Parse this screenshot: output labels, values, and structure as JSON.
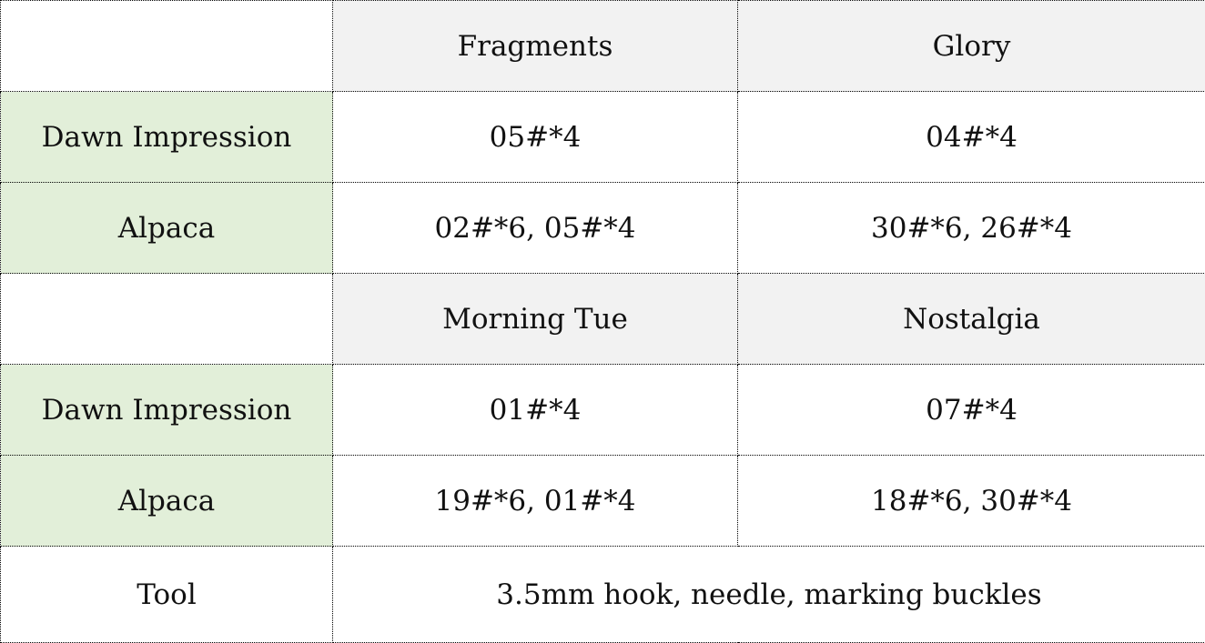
{
  "colors": {
    "header_bg": "#f2f2f2",
    "row_label_bg": "#e2efd9",
    "border": "#000000"
  },
  "blocks": [
    {
      "headers": [
        "Fragments",
        "Glory"
      ],
      "rows": [
        {
          "label": "Dawn Impression",
          "values": [
            "05#*4",
            "04#*4"
          ]
        },
        {
          "label": "Alpaca",
          "values": [
            "02#*6, 05#*4",
            "30#*6, 26#*4"
          ]
        }
      ]
    },
    {
      "headers": [
        "Morning Tue",
        "Nostalgia"
      ],
      "rows": [
        {
          "label": "Dawn Impression",
          "values": [
            "01#*4",
            "07#*4"
          ]
        },
        {
          "label": "Alpaca",
          "values": [
            "19#*6, 01#*4",
            "18#*6, 30#*4"
          ]
        }
      ]
    }
  ],
  "tool": {
    "label": "Tool",
    "value": "3.5mm hook, needle, marking buckles"
  }
}
